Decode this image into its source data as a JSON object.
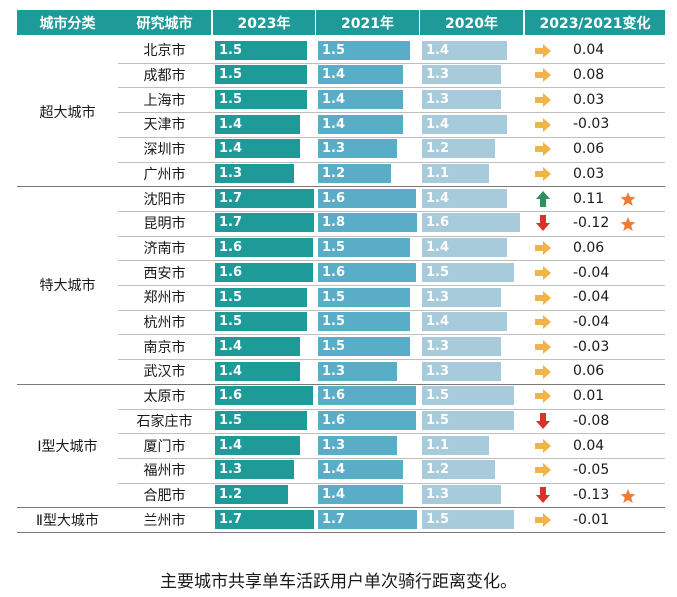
{
  "headers": [
    "城市分类",
    "研究城市",
    "2023年",
    "2021年",
    "2020年",
    "2023/2021变化"
  ],
  "caption": "主要城市共享单车活跃用户单次骑行距离变化。",
  "colors": {
    "header": "#1e9a98",
    "bar2023": "#1e9a98",
    "bar2021": "#5aadc6",
    "bar2020": "#a8cbdb",
    "flat": "#f0b449",
    "up": "#2f8f5f",
    "down": "#d8332a",
    "star": "#f07a33"
  },
  "categories": [
    {
      "name": "超大城市",
      "rows": 6
    },
    {
      "name": "特大城市",
      "rows": 8
    },
    {
      "name": "Ⅰ型大城市",
      "rows": 5
    },
    {
      "name": "Ⅱ型大城市",
      "rows": 1
    }
  ],
  "chart_data": {
    "type": "table",
    "columns": [
      "城市分类",
      "研究城市",
      "2023年",
      "2021年",
      "2020年",
      "2023/2021变化"
    ],
    "rows": [
      {
        "city": "北京市",
        "v2023": 1.5,
        "v2021": 1.5,
        "v2020": 1.4,
        "change": "0.04",
        "trend": "flat",
        "star": false
      },
      {
        "city": "成都市",
        "v2023": 1.5,
        "v2021": 1.4,
        "v2020": 1.3,
        "change": "0.08",
        "trend": "flat",
        "star": false
      },
      {
        "city": "上海市",
        "v2023": 1.5,
        "v2021": 1.4,
        "v2020": 1.3,
        "change": "0.03",
        "trend": "flat",
        "star": false
      },
      {
        "city": "天津市",
        "v2023": 1.4,
        "v2021": 1.4,
        "v2020": 1.4,
        "change": "-0.03",
        "trend": "flat",
        "star": false
      },
      {
        "city": "深圳市",
        "v2023": 1.4,
        "v2021": 1.3,
        "v2020": 1.2,
        "change": "0.06",
        "trend": "flat",
        "star": false
      },
      {
        "city": "广州市",
        "v2023": 1.3,
        "v2021": 1.2,
        "v2020": 1.1,
        "change": "0.03",
        "trend": "flat",
        "star": false
      },
      {
        "city": "沈阳市",
        "v2023": 1.7,
        "v2021": 1.6,
        "v2020": 1.4,
        "change": "0.11",
        "trend": "up",
        "star": true
      },
      {
        "city": "昆明市",
        "v2023": 1.7,
        "v2021": 1.8,
        "v2020": 1.6,
        "change": "-0.12",
        "trend": "down",
        "star": true
      },
      {
        "city": "济南市",
        "v2023": 1.6,
        "v2021": 1.5,
        "v2020": 1.4,
        "change": "0.06",
        "trend": "flat",
        "star": false
      },
      {
        "city": "西安市",
        "v2023": 1.6,
        "v2021": 1.6,
        "v2020": 1.5,
        "change": "-0.04",
        "trend": "flat",
        "star": false
      },
      {
        "city": "郑州市",
        "v2023": 1.5,
        "v2021": 1.5,
        "v2020": 1.3,
        "change": "-0.04",
        "trend": "flat",
        "star": false
      },
      {
        "city": "杭州市",
        "v2023": 1.5,
        "v2021": 1.5,
        "v2020": 1.4,
        "change": "-0.04",
        "trend": "flat",
        "star": false
      },
      {
        "city": "南京市",
        "v2023": 1.4,
        "v2021": 1.5,
        "v2020": 1.3,
        "change": "-0.03",
        "trend": "flat",
        "star": false
      },
      {
        "city": "武汉市",
        "v2023": 1.4,
        "v2021": 1.3,
        "v2020": 1.3,
        "change": "0.06",
        "trend": "flat",
        "star": false
      },
      {
        "city": "太原市",
        "v2023": 1.6,
        "v2021": 1.6,
        "v2020": 1.5,
        "change": "0.01",
        "trend": "flat",
        "star": false
      },
      {
        "city": "石家庄市",
        "v2023": 1.5,
        "v2021": 1.6,
        "v2020": 1.5,
        "change": "-0.08",
        "trend": "down",
        "star": false
      },
      {
        "city": "厦门市",
        "v2023": 1.4,
        "v2021": 1.3,
        "v2020": 1.1,
        "change": "0.04",
        "trend": "flat",
        "star": false
      },
      {
        "city": "福州市",
        "v2023": 1.3,
        "v2021": 1.4,
        "v2020": 1.2,
        "change": "-0.05",
        "trend": "flat",
        "star": false
      },
      {
        "city": "合肥市",
        "v2023": 1.2,
        "v2021": 1.4,
        "v2020": 1.3,
        "change": "-0.13",
        "trend": "down",
        "star": true
      },
      {
        "city": "兰州市",
        "v2023": 1.7,
        "v2021": 1.7,
        "v2020": 1.5,
        "change": "-0.01",
        "trend": "flat",
        "star": false
      }
    ]
  }
}
